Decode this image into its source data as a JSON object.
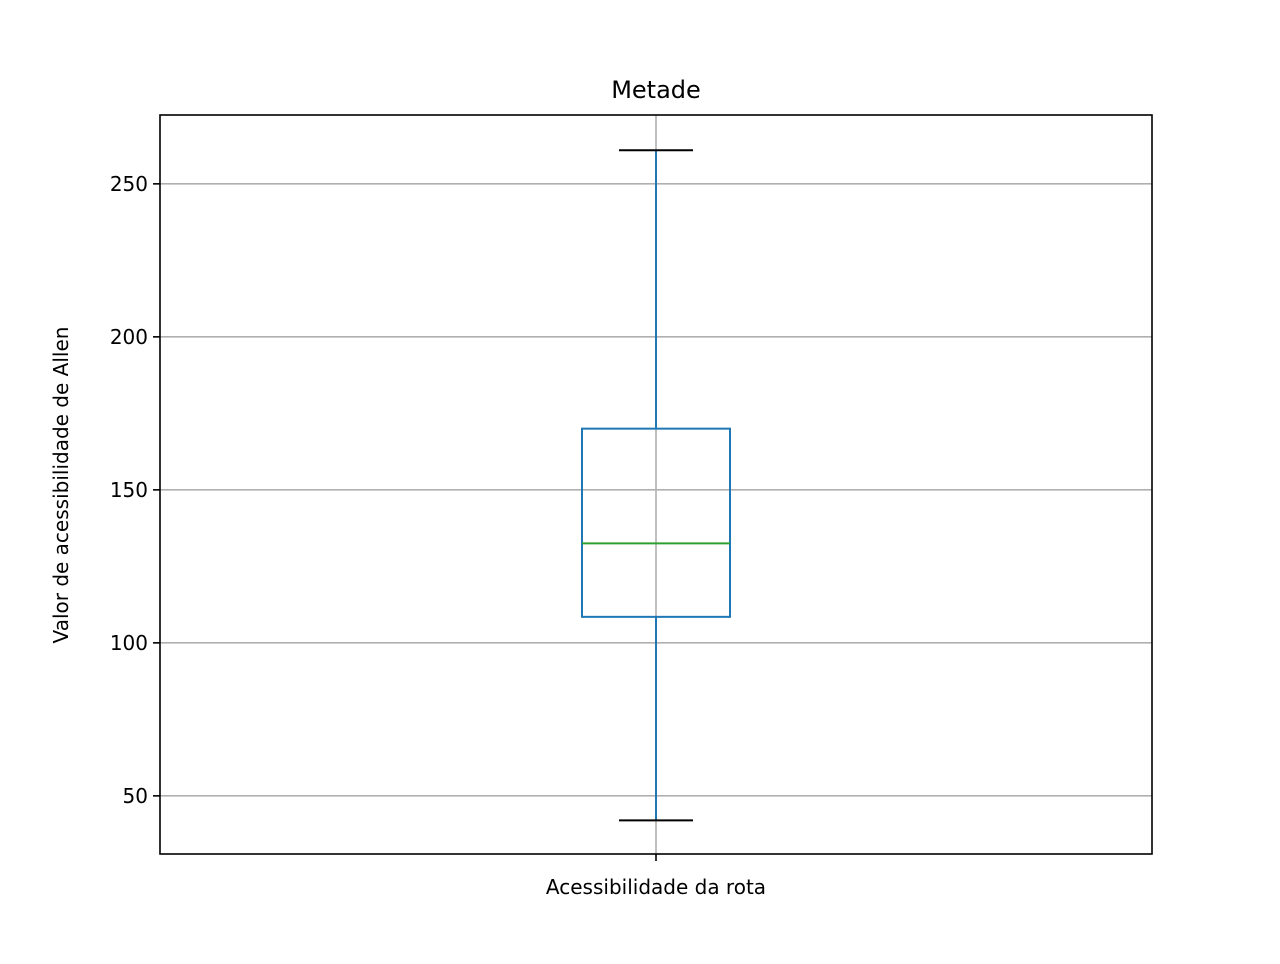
{
  "chart_data": {
    "type": "box",
    "title": "Metade",
    "xlabel": "",
    "ylabel": "Valor de acessibilidade de Allen",
    "categories": [
      "Acessibilidade da rota"
    ],
    "boxes": [
      {
        "category": "Acessibilidade da rota",
        "whisker_low": 42,
        "q1": 108.5,
        "median": 132.5,
        "q3": 170,
        "whisker_high": 261
      }
    ],
    "ylim": [
      31,
      272.5
    ],
    "yticks": [
      50,
      100,
      150,
      200,
      250
    ],
    "grid": true,
    "colors": {
      "box": "#1f77b4",
      "whisker": "#1f77b4",
      "median": "#2ca02c",
      "cap": "#000000",
      "grid": "#b0b0b0",
      "axes": "#000000"
    }
  }
}
